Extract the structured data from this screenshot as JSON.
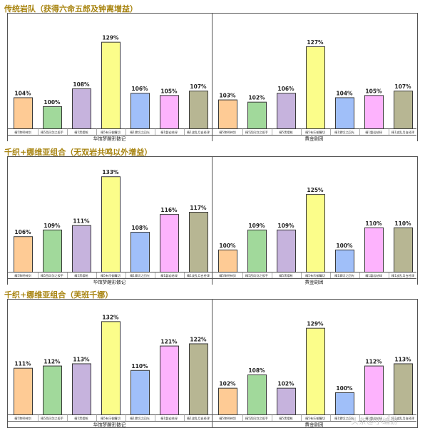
{
  "chart_data": [
    {
      "type": "bar",
      "title": "传统岩队（获得六命五郎及钟离增益）",
      "panels": [
        {
          "name": "华馆梦醒形骸记",
          "categories": [
            "精5黎明神剑",
            "精5西风剑之扳手",
            "精5黑缨枪",
            "精5有乐御簾切",
            "精1雾切之回光",
            "精1磐岩结绿",
            "精1波乱月白经津"
          ],
          "values": [
            104,
            100,
            108,
            129,
            106,
            105,
            107
          ],
          "labels": [
            "104%",
            "100%",
            "108%",
            "129%",
            "106%",
            "105%",
            "107%"
          ]
        },
        {
          "name": "黄金剧团",
          "categories": [
            "精5黎明神剑",
            "精5西风剑之扳手",
            "精5黑缨枪",
            "精5有乐御簾切",
            "精1雾切之回光",
            "精1磐岩结绿",
            "精1波乱月白经津"
          ],
          "values": [
            103,
            102,
            106,
            127,
            104,
            105,
            107
          ],
          "labels": [
            "103%",
            "102%",
            "106%",
            "127%",
            "104%",
            "105%",
            "107%"
          ]
        }
      ]
    },
    {
      "type": "bar",
      "title": "千织+娜维亚组合（无双岩共鸣以外增益）",
      "panels": [
        {
          "name": "华馆梦醒形骸记",
          "categories": [
            "精5黎明神剑",
            "精5西风剑之扳手",
            "精5黑缨枪",
            "精5有乐御簾切",
            "精1雾切之回光",
            "精1磐岩结绿",
            "精1波乱月白经津"
          ],
          "values": [
            106,
            109,
            111,
            133,
            108,
            116,
            117
          ],
          "labels": [
            "106%",
            "109%",
            "111%",
            "133%",
            "108%",
            "116%",
            "117%"
          ]
        },
        {
          "name": "黄金剧团",
          "categories": [
            "精5黎明神剑",
            "精5西风剑之扳手",
            "精5黑缨枪",
            "精5有乐御簾切",
            "精1雾切之回光",
            "精1磐岩结绿",
            "精1波乱月白经津"
          ],
          "values": [
            100,
            109,
            109,
            125,
            100,
            110,
            110
          ],
          "labels": [
            "100%",
            "109%",
            "109%",
            "125%",
            "100%",
            "110%",
            "110%"
          ]
        }
      ]
    },
    {
      "type": "bar",
      "title": "千织+娜维亚组合（芙班千娜）",
      "panels": [
        {
          "name": "华馆梦醒形骸记",
          "categories": [
            "精5黎明神剑",
            "精5西风剑之扳手",
            "精5黑缨枪",
            "精5有乐御簾切",
            "精1雾切之回光",
            "精1磐岩结绿",
            "精1波乱月白经津"
          ],
          "values": [
            111,
            112,
            113,
            132,
            110,
            121,
            122
          ],
          "labels": [
            "111%",
            "112%",
            "113%",
            "132%",
            "110%",
            "121%",
            "122%"
          ]
        },
        {
          "name": "黄金剧团",
          "categories": [
            "精5黎明神剑",
            "精5西风剑之扳手",
            "精5黑缨枪",
            "精5有乐御簾切",
            "精1雾切之回光",
            "精1磐岩结绿",
            "精1波乱月白经津"
          ],
          "values": [
            102,
            108,
            102,
            129,
            100,
            112,
            113
          ],
          "labels": [
            "102%",
            "108%",
            "102%",
            "129%",
            "100%",
            "112%",
            "113%"
          ]
        }
      ]
    }
  ],
  "bar_colors": [
    "#fecb95",
    "#a1d99b",
    "#c6b3dd",
    "#fbfd8a",
    "#a0bff9",
    "#fdb3fd",
    "#b7b693"
  ],
  "bar_stroke": "#3a3a3a",
  "watermark": "头条@小编游"
}
